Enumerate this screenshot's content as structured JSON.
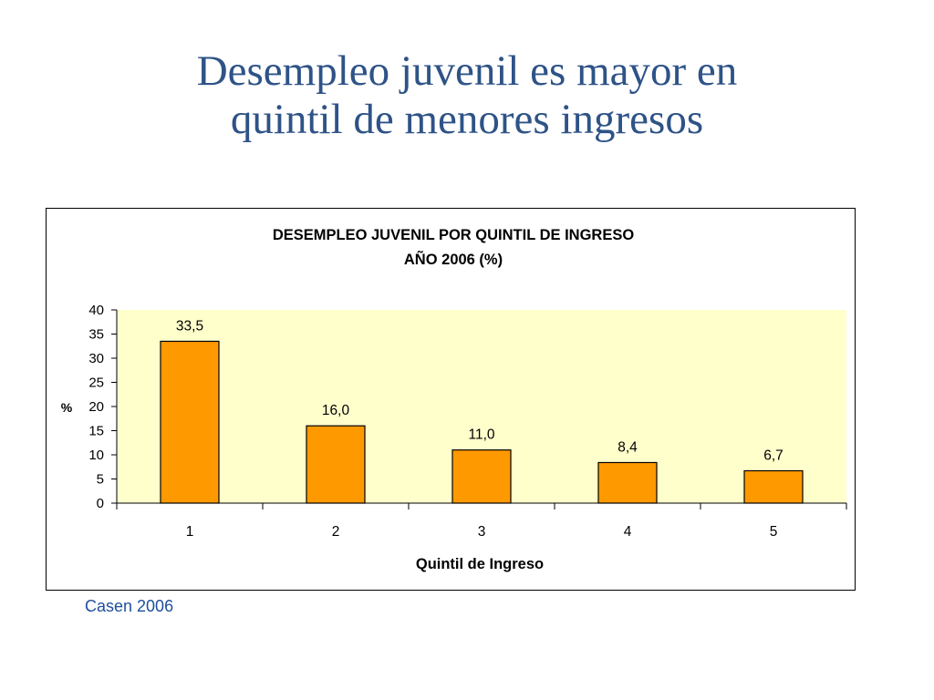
{
  "slide": {
    "title_line1": "Desempleo juvenil es mayor en",
    "title_line2": "quintil de menores ingresos",
    "source": "Casen 2006"
  },
  "colors": {
    "title": "#2e5387",
    "plot_bg": "#ffffcc",
    "bar_fill": "#ff9900",
    "bar_stroke": "#000000",
    "source_text": "#1f4e9c"
  },
  "chart_data": {
    "type": "bar",
    "title": "DESEMPLEO JUVENIL POR QUINTIL DE INGRESO",
    "subtitle": "AÑO 2006 (%)",
    "xlabel": "Quintil de Ingreso",
    "ylabel": "%",
    "categories": [
      "1",
      "2",
      "3",
      "4",
      "5"
    ],
    "values": [
      33.5,
      16.0,
      11.0,
      8.4,
      6.7
    ],
    "data_labels": [
      "33,5",
      "16,0",
      "11,0",
      "8,4",
      "6,7"
    ],
    "yticks": [
      "0",
      "5",
      "10",
      "15",
      "20",
      "25",
      "30",
      "35",
      "40"
    ],
    "ylim": [
      0,
      40
    ],
    "grid": false,
    "legend": "none"
  }
}
